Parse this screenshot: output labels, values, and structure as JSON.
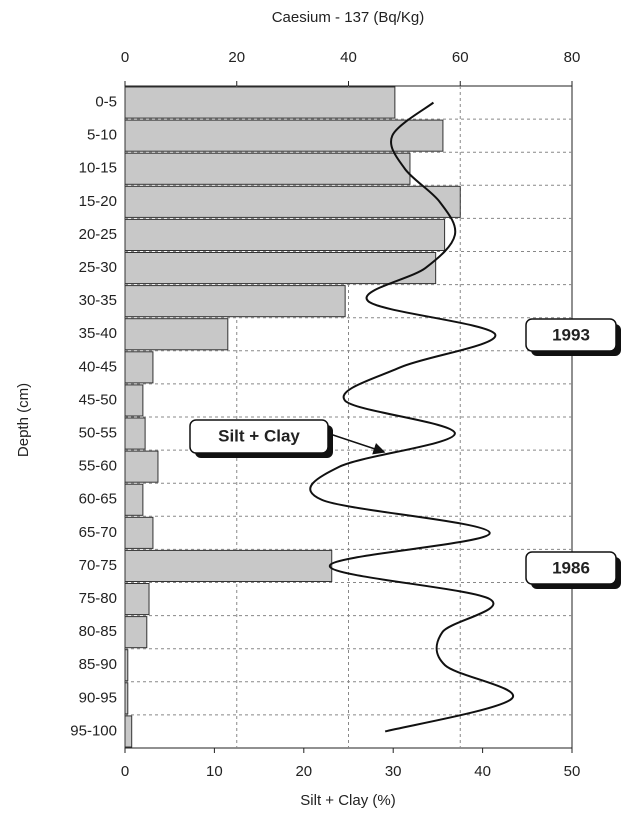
{
  "chart_data": {
    "type": "bar",
    "title": "Caesium - 137 (Bq/Kg)",
    "x_label": "Silt + Clay (%)",
    "y_label": "Depth (cm)",
    "categories": [
      "0-5",
      "5-10",
      "10-15",
      "15-20",
      "20-25",
      "25-30",
      "30-35",
      "35-40",
      "40-45",
      "45-50",
      "50-55",
      "55-60",
      "60-65",
      "65-70",
      "70-75",
      "75-80",
      "80-85",
      "85-90",
      "90-95",
      "95-100"
    ],
    "series": [
      {
        "type": "bar",
        "axis": "x2",
        "color": "#c8c8c8",
        "values": [
          48.3,
          56.9,
          51,
          60,
          57.2,
          55.6,
          39.4,
          18.4,
          5,
          3.2,
          3.6,
          5.9,
          3.2,
          5,
          37,
          4.3,
          3.9,
          0.5,
          0.5,
          1.2
        ]
      },
      {
        "type": "line",
        "name": "Silt + Clay",
        "color": "#111111",
        "values": [
          34.5,
          29.9,
          31.3,
          35.2,
          36.9,
          33.6,
          27.2,
          41.4,
          30.8,
          24.6,
          36.9,
          24,
          22,
          40.8,
          22.9,
          40.8,
          35.5,
          35.8,
          43.3,
          29.1
        ]
      }
    ],
    "xlim": [
      0,
      50
    ],
    "xticks": [
      0,
      10,
      20,
      30,
      40,
      50
    ],
    "x2lim": [
      0,
      80
    ],
    "x2ticks": [
      0,
      20,
      40,
      60,
      80
    ],
    "grid": true,
    "annotations": [
      "1993",
      "1986"
    ]
  }
}
